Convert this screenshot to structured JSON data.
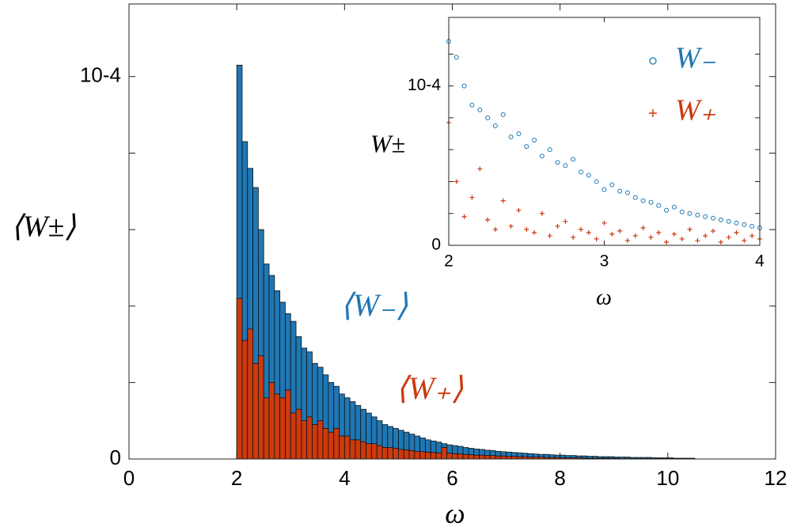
{
  "chart_data": [
    {
      "type": "histogram",
      "x_label": "ω",
      "y_label": "⟨W±⟩",
      "xlim": [
        0,
        12
      ],
      "xticks": [
        0,
        2,
        4,
        6,
        8,
        10,
        12
      ],
      "ylim": [
        0,
        0.000119
      ],
      "yticks": [
        0,
        {
          "value": 0.0001,
          "label": "10-4"
        }
      ],
      "minor_yticks": [
        2e-05,
        4e-05,
        6e-05,
        8e-05
      ],
      "bins": [
        2.0,
        2.1,
        2.2,
        2.3,
        2.4,
        2.5,
        2.6,
        2.7,
        2.8,
        2.9,
        3.0,
        3.1,
        3.2,
        3.3,
        3.4,
        3.5,
        3.6,
        3.7,
        3.8,
        3.9,
        4.0,
        4.1,
        4.2,
        4.3,
        4.4,
        4.5,
        4.6,
        4.7,
        4.8,
        4.9,
        5.0,
        5.1,
        5.2,
        5.3,
        5.4,
        5.5,
        5.6,
        5.7,
        5.8,
        5.9,
        6.0,
        6.1,
        6.2,
        6.3,
        6.4,
        6.5,
        6.6,
        6.7,
        6.8,
        6.9,
        7.0,
        7.1,
        7.2,
        7.3,
        7.4,
        7.5,
        7.6,
        7.7,
        7.8,
        7.9,
        8.0,
        8.1,
        8.2,
        8.3,
        8.4,
        8.5,
        8.6,
        8.7,
        8.8,
        8.9,
        9.0,
        9.1,
        9.2,
        9.3,
        9.4,
        9.5,
        9.6,
        9.7,
        9.8,
        9.9,
        10.0,
        10.1,
        10.2,
        10.3,
        10.4,
        10.5
      ],
      "series": [
        {
          "name": "⟨W₋⟩",
          "color": "#1f77b4",
          "values": [
            0.000103,
            8.3e-05,
            7.6e-05,
            7.1e-05,
            6e-05,
            5.1e-05,
            4.8e-05,
            4.4e-05,
            4.1e-05,
            3.8e-05,
            3.6e-05,
            3.2e-05,
            2.9e-05,
            2.8e-05,
            2.5e-05,
            2.4e-05,
            2.2e-05,
            2e-05,
            1.9e-05,
            1.7e-05,
            1.6e-05,
            1.5e-05,
            1.4e-05,
            1.3e-05,
            1.2e-05,
            1.1e-05,
            1e-05,
            9e-06,
            8.5e-06,
            8e-06,
            7.5e-06,
            7e-06,
            6.5e-06,
            6e-06,
            5.5e-06,
            5e-06,
            4.7e-06,
            4.4e-06,
            4e-06,
            3.7e-06,
            3.5e-06,
            3.3e-06,
            3e-06,
            2.8e-06,
            2.6e-06,
            2.5e-06,
            2.3e-06,
            2.2e-06,
            2e-06,
            1.9e-06,
            1.8e-06,
            1.7e-06,
            1.6e-06,
            1.5e-06,
            1.4e-06,
            1.3e-06,
            1.2e-06,
            1.2e-06,
            1.1e-06,
            1e-06,
            1e-06,
            9e-07,
            9e-07,
            8e-07,
            8e-07,
            7e-07,
            7e-07,
            6e-07,
            6e-07,
            6e-07,
            5e-07,
            5e-07,
            5e-07,
            4e-07,
            4e-07,
            4e-07,
            4e-07,
            3e-07,
            3e-07,
            3e-07,
            3e-07,
            2e-07,
            2e-07,
            2e-07,
            2e-07
          ]
        },
        {
          "name": "⟨W₊⟩",
          "color": "#cc3a0e",
          "values": [
            4.2e-05,
            3.1e-05,
            3.4e-05,
            2.5e-05,
            2.7e-05,
            1.6e-05,
            2e-05,
            1.7e-05,
            1.6e-05,
            1.8e-05,
            1.2e-05,
            1.3e-05,
            1e-05,
            1.1e-05,
            9e-06,
            1e-05,
            8e-06,
            7e-06,
            8e-06,
            6e-06,
            6e-06,
            5e-06,
            5e-06,
            4.5e-06,
            4e-06,
            4e-06,
            3.5e-06,
            3e-06,
            3e-06,
            2.8e-06,
            2.5e-06,
            2.4e-06,
            2.2e-06,
            2e-06,
            1.9e-06,
            1.8e-06,
            1.7e-06,
            1.6e-06,
            3e-06,
            1.5e-06,
            1.4e-06,
            1.3e-06,
            1.2e-06,
            1.1e-06,
            1e-06,
            1e-06,
            9e-07,
            9e-07,
            8e-07,
            8e-07,
            7e-07,
            7e-07,
            6e-07,
            6e-07,
            5e-07,
            5e-07,
            5e-07,
            4e-07,
            4e-07,
            4e-07,
            3e-07,
            3e-07,
            3e-07,
            3e-07,
            2e-07,
            2e-07,
            2e-07,
            2e-07,
            2e-07,
            2e-07,
            2e-07,
            1e-07,
            1e-07,
            1e-07,
            1e-07,
            1e-07,
            1e-07,
            1e-07,
            1e-07,
            1e-07,
            1e-07,
            1e-07,
            1e-07,
            1e-07,
            1e-07
          ]
        }
      ]
    },
    {
      "type": "scatter",
      "x_label": "ω",
      "y_label": "W±",
      "legend": "upper right",
      "xlim": [
        2,
        4
      ],
      "xticks": [
        2,
        3,
        4
      ],
      "ylim": [
        0,
        0.000143
      ],
      "yticks": [
        0,
        {
          "value": 0.0001,
          "label": "10-4"
        }
      ],
      "minor_yticks": [
        2e-05,
        4e-05,
        6e-05,
        8e-05,
        0.00012
      ],
      "x": [
        2,
        2.05,
        2.1,
        2.15,
        2.2,
        2.25,
        2.3,
        2.35,
        2.4,
        2.45,
        2.5,
        2.55,
        2.6,
        2.65,
        2.7,
        2.75,
        2.8,
        2.85,
        2.9,
        2.95,
        3,
        3.05,
        3.1,
        3.15,
        3.2,
        3.25,
        3.3,
        3.35,
        3.4,
        3.45,
        3.5,
        3.55,
        3.6,
        3.65,
        3.7,
        3.75,
        3.8,
        3.85,
        3.9,
        3.95,
        4
      ],
      "series": [
        {
          "name": "W₋",
          "color": "#1f77b4",
          "marker": "circle",
          "values": [
            0.000128,
            0.000118,
            0.0001,
            8.8e-05,
            8.5e-05,
            8e-05,
            7.5e-05,
            8.2e-05,
            6.8e-05,
            7e-05,
            6.2e-05,
            6.6e-05,
            5.6e-05,
            6e-05,
            5.2e-05,
            5e-05,
            5.4e-05,
            4.6e-05,
            4.4e-05,
            4e-05,
            3.5e-05,
            3.8e-05,
            3.4e-05,
            3.3e-05,
            3e-05,
            2.8e-05,
            2.7e-05,
            2.5e-05,
            2.2e-05,
            2.4e-05,
            2.1e-05,
            2e-05,
            1.9e-05,
            1.8e-05,
            1.7e-05,
            1.6e-05,
            1.5e-05,
            1.4e-05,
            1.3e-05,
            1.2e-05,
            1.1e-05
          ]
        },
        {
          "name": "W₊",
          "color": "#cc3a0e",
          "marker": "plus",
          "values": [
            7.7e-05,
            4e-05,
            1.8e-05,
            3e-05,
            4.8e-05,
            1.6e-05,
            1e-05,
            2.8e-05,
            1.2e-05,
            2.2e-05,
            1e-05,
            8e-06,
            2e-05,
            6e-06,
            1.2e-05,
            1.5e-05,
            5e-06,
            1e-05,
            8e-06,
            4e-06,
            1.4e-05,
            7e-06,
            9e-06,
            3e-06,
            6e-06,
            1.1e-05,
            5e-06,
            8e-06,
            2e-06,
            7e-06,
            4e-06,
            1e-05,
            3e-06,
            6e-06,
            9e-06,
            2e-06,
            5e-06,
            8e-06,
            3e-06,
            6e-06,
            4e-06
          ]
        }
      ]
    }
  ]
}
